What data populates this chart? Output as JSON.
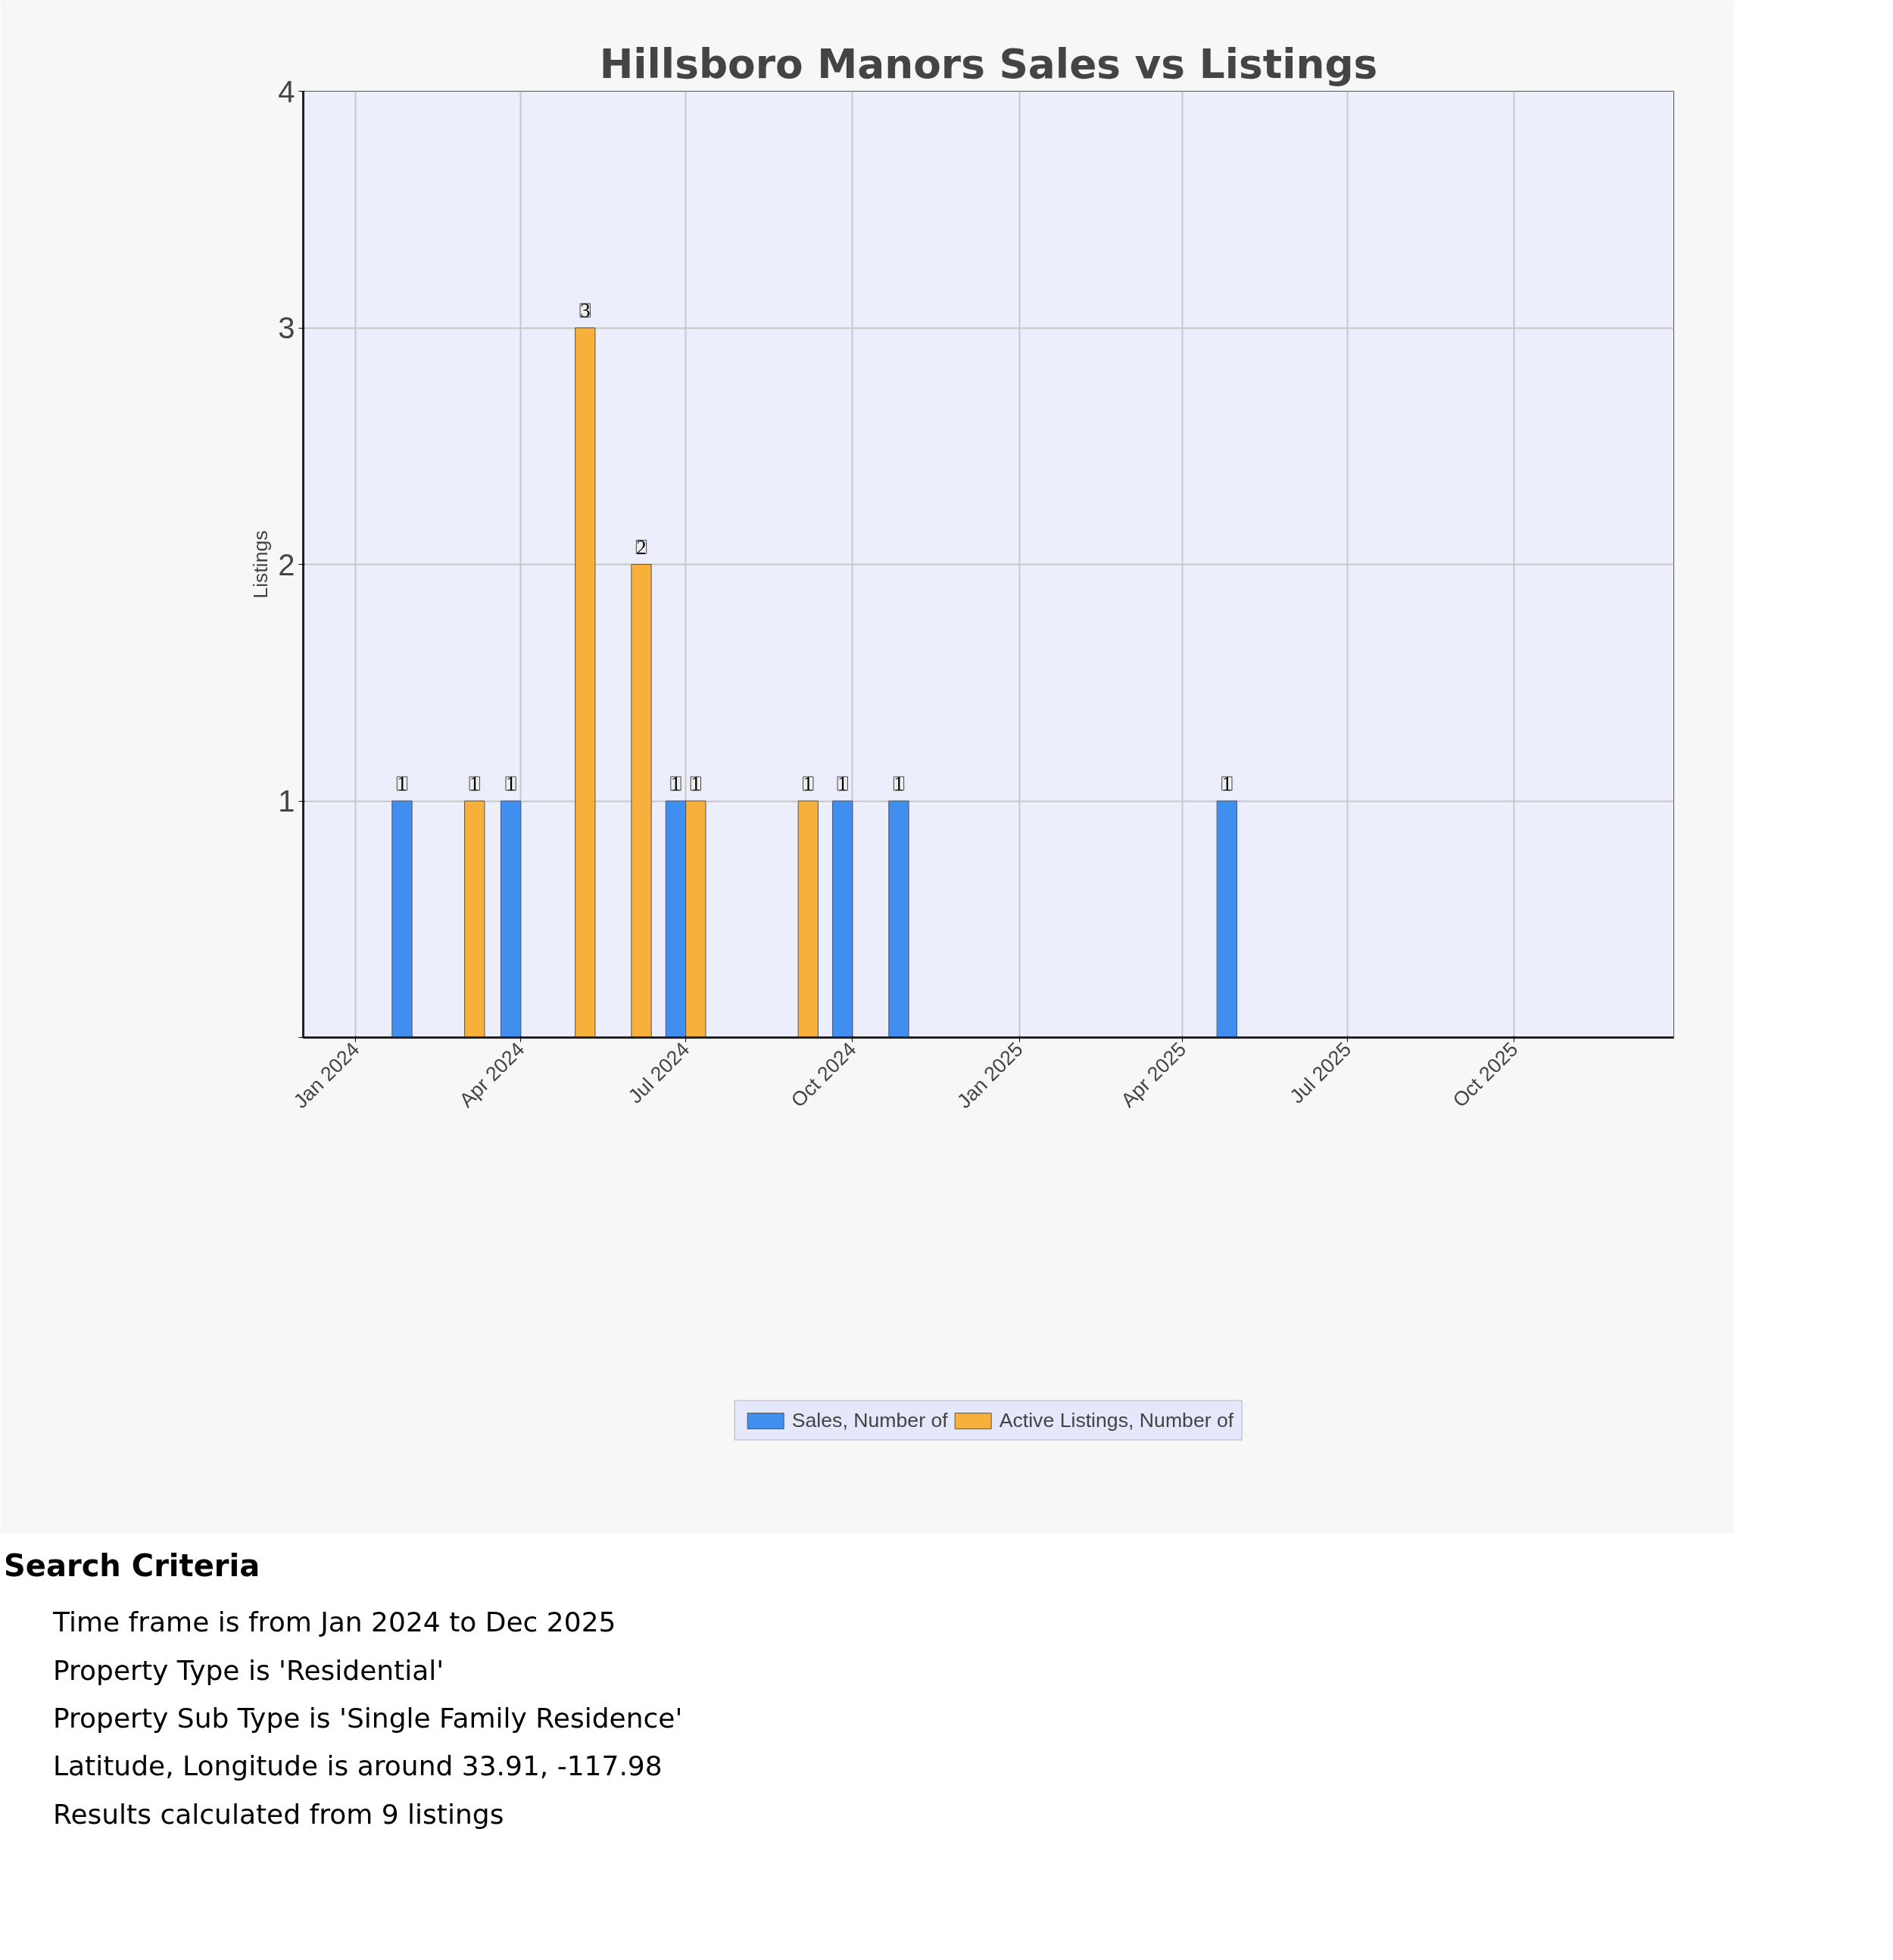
{
  "chart_data": {
    "type": "bar",
    "title": "Hillsboro Manors Sales vs Listings",
    "ylabel": "Listings",
    "xlim": [
      "2023-12-03",
      "2025-12-28"
    ],
    "xticks": [
      {
        "value": "2024-01",
        "label": "Jan 2024"
      },
      {
        "value": "2024-04",
        "label": "Apr 2024"
      },
      {
        "value": "2024-07",
        "label": "Jul 2024"
      },
      {
        "value": "2024-10",
        "label": "Oct 2024"
      },
      {
        "value": "2025-01",
        "label": "Jan 2025"
      },
      {
        "value": "2025-04",
        "label": "Apr 2025"
      },
      {
        "value": "2025-07",
        "label": "Jul 2025"
      },
      {
        "value": "2025-10",
        "label": "Oct 2025"
      }
    ],
    "ylim": [
      0,
      4
    ],
    "yticks": [
      {
        "value": 0,
        "label": null
      },
      1,
      2,
      3,
      4
    ],
    "series": [
      {
        "name": "Sales, Number of",
        "color": "#3f8ef0",
        "x": [
          "2024-02",
          "2024-04",
          "2024-07",
          "2024-10",
          "2024-11",
          "2025-05"
        ],
        "values": [
          1,
          1,
          1,
          1,
          1,
          1
        ]
      },
      {
        "name": "Active Listings, Number of",
        "color": "#f8b03c",
        "x": [
          "2024-03",
          "2024-05",
          "2024-06",
          "2024-07",
          "2024-09"
        ],
        "values": [
          1,
          3,
          2,
          1,
          1
        ]
      }
    ],
    "data_labels": true,
    "grid": true,
    "legend": "bottom",
    "annotations": [
      "Search Criteria",
      "Time frame is from Jan 2024 to Dec 2025",
      "Property Type is 'Residential'",
      "Property Sub Type is 'Single Family Residence'",
      "Latitude, Longitude is around 33.91, -117.98",
      "Results calculated from 9 listings"
    ]
  }
}
